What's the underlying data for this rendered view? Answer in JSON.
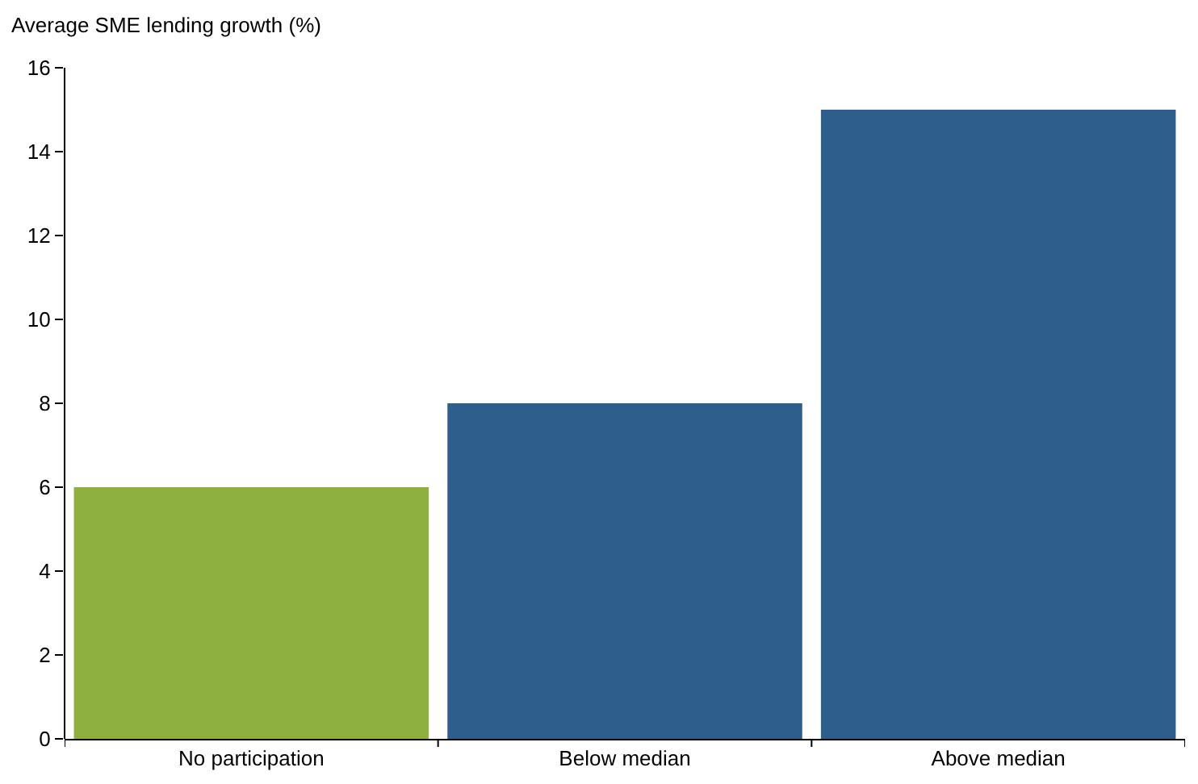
{
  "chart_data": {
    "type": "bar",
    "ylabel": "Average SME lending growth (%)",
    "categories": [
      "No participation",
      "Below median",
      "Above median"
    ],
    "values": [
      6,
      8,
      15
    ],
    "colors": [
      "#8db040",
      "#2e5f8c",
      "#2e5f8c"
    ],
    "ylim": [
      0,
      16
    ],
    "yticks": [
      0,
      2,
      4,
      6,
      8,
      10,
      12,
      14,
      16
    ]
  }
}
